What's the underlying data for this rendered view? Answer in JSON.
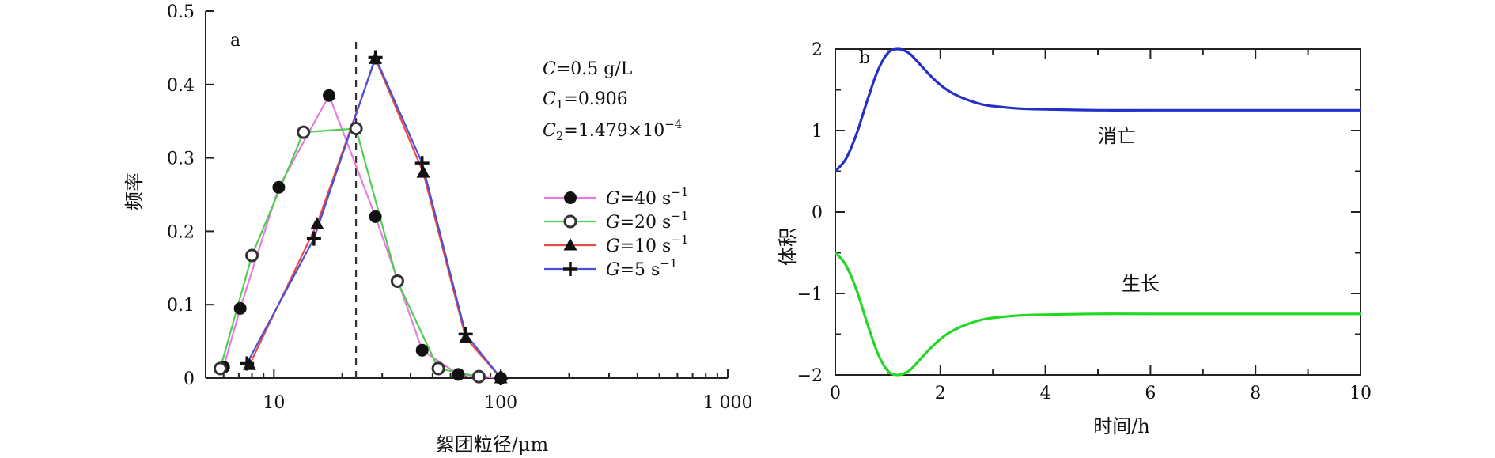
{
  "chart_data": [
    {
      "type": "line",
      "panel_label": "a",
      "xlabel": "絮团粒径/μm",
      "ylabel": "频率",
      "xscale": "log",
      "xlim": [
        5,
        1000
      ],
      "ylim": [
        0,
        0.5
      ],
      "x_ticks": [
        10,
        100,
        1000
      ],
      "x_tick_labels": [
        "10",
        "100",
        "1 000"
      ],
      "y_ticks": [
        0,
        0.1,
        0.2,
        0.3,
        0.4,
        0.5
      ],
      "y_tick_labels": [
        "0",
        "0.1",
        "0.2",
        "0.3",
        "0.4",
        "0.5"
      ],
      "reference_line": {
        "x": 23,
        "style": "dashed"
      },
      "annotations": {
        "c": {
          "sym": "C",
          "sub": "",
          "val": "=0.5 g/L"
        },
        "c1": {
          "sym": "C",
          "sub": "1",
          "val": "=0.906"
        },
        "c2": {
          "sym": "C",
          "sub": "2",
          "val": "=1.479×10",
          "sup": "−4"
        }
      },
      "legend_position": "right",
      "series": [
        {
          "name": "G=40 s⁻¹",
          "label_sym": "G",
          "label_val": "=40 s",
          "label_sup": "−1",
          "color": "#e77be3",
          "marker": "filled-circle",
          "x": [
            6,
            7.1,
            10.5,
            17.5,
            28,
            45,
            65,
            100
          ],
          "y": [
            0.015,
            0.095,
            0.26,
            0.385,
            0.22,
            0.038,
            0.005,
            0.0
          ]
        },
        {
          "name": "G=20 s⁻¹",
          "label_sym": "G",
          "label_val": "=20 s",
          "label_sup": "−1",
          "color": "#4fcf4f",
          "marker": "open-circle",
          "x": [
            5.8,
            8,
            13.5,
            23,
            35,
            53,
            80
          ],
          "y": [
            0.013,
            0.167,
            0.335,
            0.34,
            0.132,
            0.013,
            0.002
          ]
        },
        {
          "name": "G=10 s⁻¹",
          "label_sym": "G",
          "label_val": "=10 s",
          "label_sup": "−1",
          "color": "#e84a4a",
          "marker": "filled-triangle",
          "x": [
            7.8,
            15.5,
            28,
            45.5,
            70,
            100
          ],
          "y": [
            0.018,
            0.21,
            0.435,
            0.28,
            0.055,
            0.0
          ]
        },
        {
          "name": "G=5 s⁻¹",
          "label_sym": "G",
          "label_val": "=5 s",
          "label_sup": "−1",
          "color": "#4a4fd6",
          "marker": "plus",
          "x": [
            7.6,
            15,
            28,
            45,
            70,
            100
          ],
          "y": [
            0.02,
            0.19,
            0.437,
            0.293,
            0.06,
            0.0
          ]
        }
      ]
    },
    {
      "type": "line",
      "panel_label": "b",
      "xlabel": "时间/h",
      "ylabel": "体积",
      "xlim": [
        0,
        10
      ],
      "ylim": [
        -2,
        2
      ],
      "x_ticks": [
        0,
        2,
        4,
        6,
        8,
        10
      ],
      "x_tick_labels": [
        "0",
        "2",
        "4",
        "6",
        "8",
        "10"
      ],
      "y_ticks": [
        -2,
        -1,
        0,
        1,
        2
      ],
      "y_tick_labels": [
        "−2",
        "−1",
        "0",
        "1",
        "2"
      ],
      "series": [
        {
          "name": "消亡",
          "color": "#2230c8",
          "x": [
            0,
            0.2,
            0.4,
            0.6,
            0.8,
            1.0,
            1.2,
            1.4,
            1.6,
            1.8,
            2.0,
            2.2,
            2.5,
            2.8,
            3.0,
            3.5,
            4.0,
            5.0,
            6.0,
            8.0,
            10.0
          ],
          "y": [
            0.5,
            0.65,
            0.95,
            1.35,
            1.72,
            1.95,
            2.0,
            1.95,
            1.82,
            1.68,
            1.56,
            1.47,
            1.38,
            1.32,
            1.3,
            1.27,
            1.26,
            1.25,
            1.25,
            1.25,
            1.25
          ]
        },
        {
          "name": "生长",
          "color": "#22d822",
          "x": [
            0,
            0.2,
            0.4,
            0.6,
            0.8,
            1.0,
            1.2,
            1.4,
            1.6,
            1.8,
            2.0,
            2.2,
            2.5,
            2.8,
            3.0,
            3.5,
            4.0,
            5.0,
            6.0,
            8.0,
            10.0
          ],
          "y": [
            -0.5,
            -0.65,
            -0.95,
            -1.35,
            -1.72,
            -1.95,
            -2.0,
            -1.95,
            -1.82,
            -1.68,
            -1.56,
            -1.47,
            -1.38,
            -1.32,
            -1.3,
            -1.27,
            -1.26,
            -1.25,
            -1.25,
            -1.25,
            -1.25
          ]
        }
      ]
    }
  ]
}
